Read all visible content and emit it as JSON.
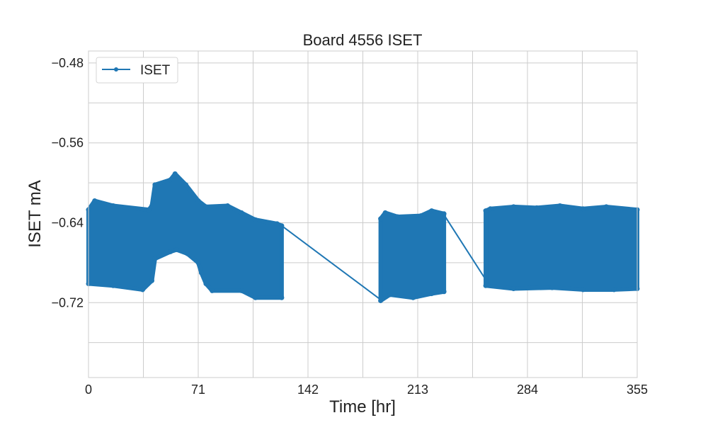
{
  "chart_data": {
    "type": "line",
    "title": "Board 4556 ISET",
    "xlabel": "Time [hr]",
    "ylabel": "ISET mA",
    "xlim": [
      0,
      355
    ],
    "ylim": [
      -0.795,
      -0.468
    ],
    "xticks": [
      0,
      71,
      142,
      213,
      284,
      355
    ],
    "xtick_labels": [
      "0",
      "71",
      "142",
      "213",
      "284",
      "355"
    ],
    "yticks": [
      -0.48,
      -0.56,
      -0.64,
      -0.72
    ],
    "ytick_labels": [
      "−0.48",
      "−0.56",
      "−0.64",
      "−0.72"
    ],
    "x_minor_grid": [
      35.5,
      106.5,
      177.5,
      248.5,
      319.5
    ],
    "y_minor_grid": [
      -0.52,
      -0.6,
      -0.68,
      -0.76
    ],
    "grid": true,
    "legend": {
      "placement": "top-left",
      "entries": [
        "ISET"
      ]
    },
    "series": [
      {
        "name": "ISET",
        "color": "#1f77b4",
        "marker": "dot",
        "dense_segments": [
          {
            "upper": [
              [
                0,
                -0.627
              ],
              [
                4,
                -0.618
              ],
              [
                16,
                -0.623
              ],
              [
                39,
                -0.627
              ],
              [
                41,
                -0.623
              ],
              [
                43,
                -0.602
              ],
              [
                53,
                -0.597
              ],
              [
                56,
                -0.591
              ],
              [
                63,
                -0.602
              ],
              [
                71,
                -0.618
              ],
              [
                76,
                -0.624
              ],
              [
                90,
                -0.623
              ],
              [
                99,
                -0.63
              ],
              [
                108,
                -0.637
              ],
              [
                122,
                -0.641
              ],
              [
                125,
                -0.643
              ]
            ],
            "lower": [
              [
                0,
                -0.701
              ],
              [
                16,
                -0.703
              ],
              [
                35,
                -0.707
              ],
              [
                41,
                -0.698
              ],
              [
                43,
                -0.676
              ],
              [
                53,
                -0.669
              ],
              [
                57,
                -0.667
              ],
              [
                64,
                -0.671
              ],
              [
                71,
                -0.68
              ],
              [
                73,
                -0.69
              ],
              [
                76,
                -0.701
              ],
              [
                80,
                -0.708
              ],
              [
                99,
                -0.708
              ],
              [
                108,
                -0.715
              ],
              [
                125,
                -0.715
              ]
            ]
          },
          {
            "upper": [
              [
                189,
                -0.636
              ],
              [
                192,
                -0.63
              ],
              [
                200,
                -0.634
              ],
              [
                215,
                -0.633
              ],
              [
                222,
                -0.628
              ],
              [
                230,
                -0.631
              ]
            ],
            "lower": [
              [
                189,
                -0.718
              ],
              [
                195,
                -0.712
              ],
              [
                210,
                -0.715
              ],
              [
                222,
                -0.711
              ],
              [
                230,
                -0.709
              ]
            ]
          },
          {
            "upper": [
              [
                257,
                -0.628
              ],
              [
                260,
                -0.626
              ],
              [
                275,
                -0.624
              ],
              [
                290,
                -0.625
              ],
              [
                305,
                -0.623
              ],
              [
                320,
                -0.626
              ],
              [
                335,
                -0.624
              ],
              [
                355,
                -0.627
              ]
            ],
            "lower": [
              [
                257,
                -0.703
              ],
              [
                275,
                -0.706
              ],
              [
                300,
                -0.705
              ],
              [
                320,
                -0.707
              ],
              [
                340,
                -0.707
              ],
              [
                355,
                -0.706
              ]
            ]
          }
        ],
        "gap_lines": [
          [
            [
              125,
              -0.643
            ],
            [
              189,
              -0.717
            ]
          ],
          [
            [
              230,
              -0.632
            ],
            [
              257,
              -0.697
            ]
          ]
        ]
      }
    ]
  }
}
